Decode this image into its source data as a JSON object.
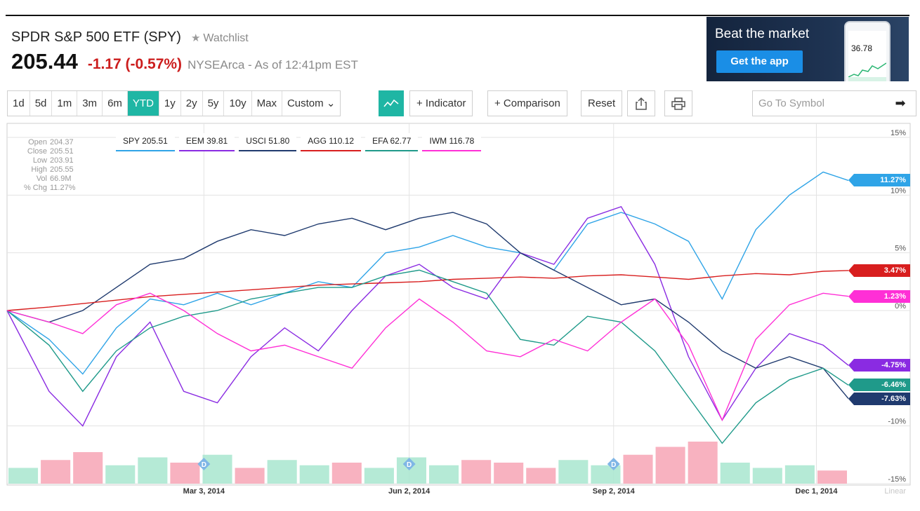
{
  "header": {
    "title": "SPDR S&P 500 ETF (SPY)",
    "watchlist_label": "Watchlist",
    "price": "205.44",
    "change": "-1.17 (-0.57%)",
    "exchange": "NYSEArca - As of 12:41pm EST"
  },
  "ad": {
    "headline": "Beat the market",
    "button": "Get the app",
    "phone_value": "36.78"
  },
  "toolbar": {
    "ranges": [
      "1d",
      "5d",
      "1m",
      "3m",
      "6m",
      "YTD",
      "1y",
      "2y",
      "5y",
      "10y",
      "Max",
      "Custom ⌄"
    ],
    "active_range": "YTD",
    "indicator": "+ Indicator",
    "comparison": "+ Comparison",
    "reset": "Reset",
    "symbol_placeholder": "Go To Symbol"
  },
  "ohlc": {
    "open_label": "Open",
    "open": "204.37",
    "close_label": "Close",
    "close": "205.51",
    "low_label": "Low",
    "low": "203.91",
    "high_label": "High",
    "high": "205.55",
    "vol_label": "Vol",
    "vol": "66.9M",
    "chg_label": "% Chg",
    "chg": "11.27%"
  },
  "colors": {
    "SPY": "#2fa4e7",
    "EEM": "#8a2be2",
    "USCI": "#1f3a6e",
    "AGG": "#d81e1e",
    "EFA": "#1f9a8a",
    "IWM": "#ff2fd6",
    "volume_up": "#a8e6cf",
    "volume_down": "#f7a5b5",
    "grid": "#e3e3e3"
  },
  "chart_data": {
    "type": "line",
    "y_unit": "%",
    "ylim": [
      -15,
      15
    ],
    "y_ticks": [
      "15%",
      "10%",
      "5%",
      "0%",
      "-5%",
      "-10%",
      "-15%"
    ],
    "y_tick_values": [
      15,
      10,
      5,
      0,
      -5,
      -10,
      -15
    ],
    "x_ticks": [
      "Mar 3, 2014",
      "Jun 2, 2014",
      "Sep 2, 2014",
      "Dec 1, 2014"
    ],
    "x_tick_values": [
      0.234,
      0.478,
      0.721,
      0.962
    ],
    "scale_label": "Linear",
    "x": [
      0.0,
      0.05,
      0.09,
      0.13,
      0.17,
      0.21,
      0.25,
      0.29,
      0.33,
      0.37,
      0.41,
      0.45,
      0.49,
      0.53,
      0.57,
      0.61,
      0.65,
      0.69,
      0.73,
      0.77,
      0.81,
      0.85,
      0.89,
      0.93,
      0.97,
      1.0
    ],
    "series": [
      {
        "name": "SPY 205.51",
        "key": "SPY",
        "end_label": "11.27%",
        "values": [
          0.0,
          -2.5,
          -5.5,
          -1.5,
          1.0,
          0.5,
          1.5,
          0.5,
          1.5,
          2.5,
          2.0,
          5.0,
          5.5,
          6.5,
          5.5,
          5.0,
          3.5,
          7.5,
          8.5,
          7.5,
          6.0,
          1.0,
          7.0,
          10.0,
          12.0,
          11.27
        ]
      },
      {
        "name": "EEM 39.81",
        "key": "EEM",
        "end_label": "-4.75%",
        "values": [
          0.0,
          -7.0,
          -10.0,
          -4.0,
          -1.0,
          -7.0,
          -8.0,
          -4.0,
          -1.5,
          -3.5,
          0.0,
          3.0,
          4.0,
          2.0,
          1.0,
          5.0,
          4.0,
          8.0,
          9.0,
          4.0,
          -4.0,
          -9.5,
          -5.0,
          -2.0,
          -3.0,
          -4.75
        ]
      },
      {
        "name": "USCI 51.80",
        "key": "USCI",
        "end_label": "-7.63%",
        "values": [
          0.0,
          -1.0,
          0.0,
          2.0,
          4.0,
          4.5,
          6.0,
          7.0,
          6.5,
          7.5,
          8.0,
          7.0,
          8.0,
          8.5,
          7.5,
          5.0,
          3.5,
          2.0,
          0.5,
          1.0,
          -1.0,
          -3.5,
          -5.0,
          -4.0,
          -5.0,
          -7.63
        ]
      },
      {
        "name": "AGG 110.12",
        "key": "AGG",
        "end_label": "3.47%",
        "values": [
          0.0,
          0.3,
          0.6,
          0.9,
          1.2,
          1.4,
          1.6,
          1.8,
          2.0,
          2.2,
          2.3,
          2.4,
          2.5,
          2.7,
          2.8,
          2.9,
          2.8,
          3.0,
          3.1,
          2.9,
          2.7,
          3.0,
          3.2,
          3.1,
          3.4,
          3.47
        ]
      },
      {
        "name": "EFA 62.77",
        "key": "EFA",
        "end_label": "-6.46%",
        "values": [
          0.0,
          -3.0,
          -7.0,
          -3.5,
          -1.5,
          -0.5,
          0.0,
          1.0,
          1.5,
          2.0,
          2.0,
          3.0,
          3.5,
          2.5,
          1.5,
          -2.5,
          -3.0,
          -0.5,
          -1.0,
          -3.5,
          -7.5,
          -11.5,
          -8.0,
          -6.0,
          -5.0,
          -6.46
        ]
      },
      {
        "name": "IWM 116.78",
        "key": "IWM",
        "end_label": "1.23%",
        "values": [
          0.0,
          -1.0,
          -2.0,
          0.5,
          1.5,
          0.0,
          -2.0,
          -3.5,
          -3.0,
          -4.0,
          -5.0,
          -1.5,
          1.0,
          -1.0,
          -3.5,
          -4.0,
          -2.5,
          -3.5,
          -1.0,
          1.0,
          -3.0,
          -9.5,
          -2.5,
          0.5,
          1.5,
          1.23
        ]
      }
    ],
    "volume": [
      30,
      45,
      60,
      35,
      50,
      40,
      55,
      30,
      45,
      35,
      40,
      30,
      50,
      35,
      45,
      40,
      30,
      45,
      35,
      55,
      70,
      80,
      40,
      30,
      35,
      25
    ],
    "dividend_markers": [
      "D",
      "D",
      "D"
    ],
    "dividend_x": [
      0.234,
      0.478,
      0.721
    ]
  }
}
